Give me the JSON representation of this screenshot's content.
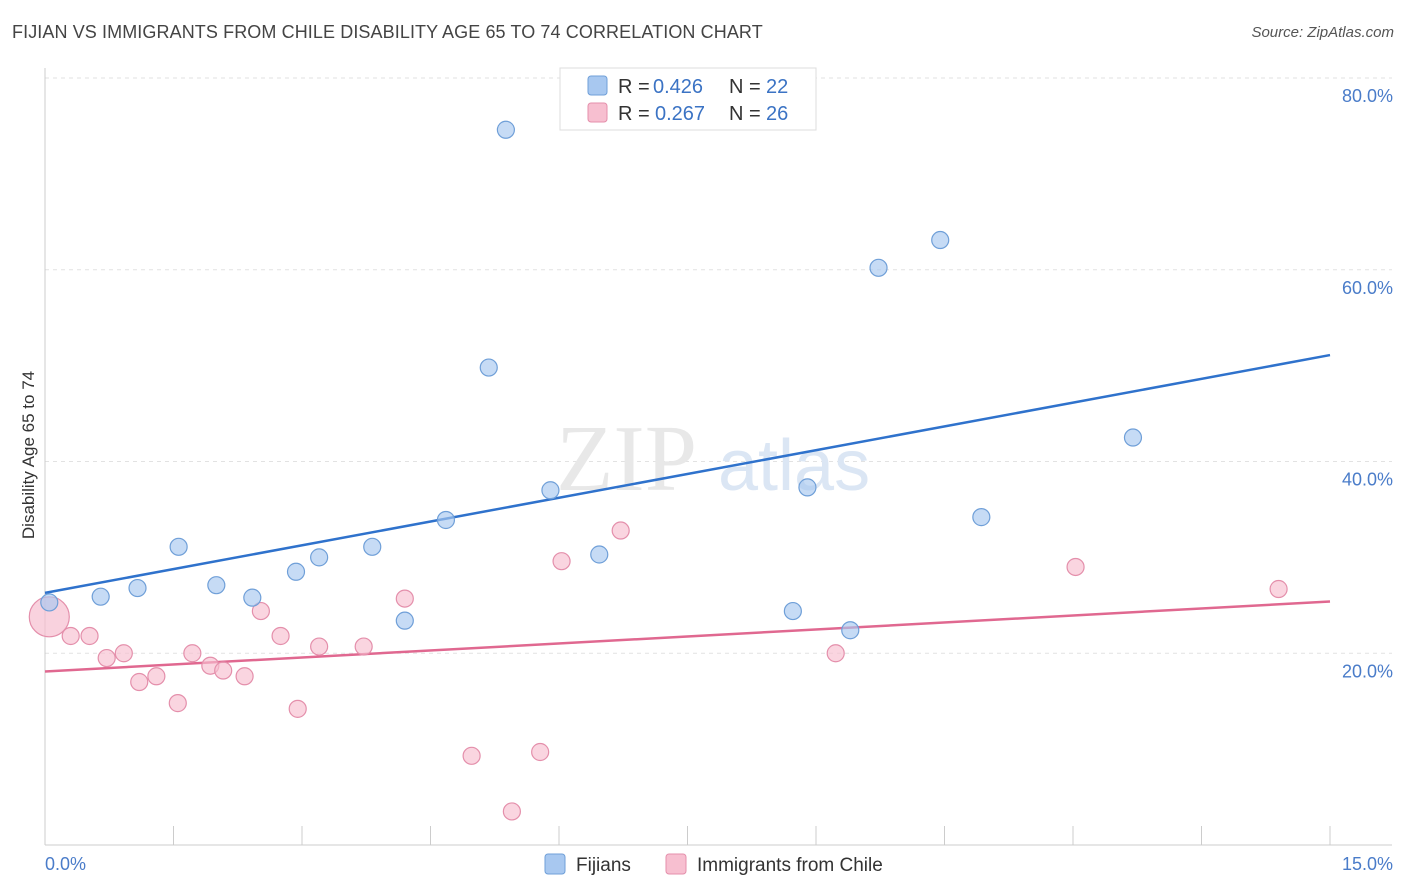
{
  "header": {
    "title": "FIJIAN VS IMMIGRANTS FROM CHILE DISABILITY AGE 65 TO 74 CORRELATION CHART",
    "source": "Source: ZipAtlas.com"
  },
  "watermark": {
    "part1": "ZIP",
    "part2": "atlas"
  },
  "legend_top": {
    "rows": [
      {
        "r_label": "R =",
        "r_value": "0.426",
        "n_label": "N =",
        "n_value": "22"
      },
      {
        "r_label": "R =",
        "r_value": "0.267",
        "n_label": "N =",
        "n_value": "26"
      }
    ]
  },
  "chart_data": {
    "type": "scatter",
    "title": "FIJIAN VS IMMIGRANTS FROM CHILE DISABILITY AGE 65 TO 74 CORRELATION CHART",
    "xlabel": "",
    "ylabel": "Disability Age 65 to 74",
    "xlim": [
      0,
      15
    ],
    "ylim": [
      0,
      80
    ],
    "x_tick_labels": [
      "0.0%",
      "15.0%"
    ],
    "y_ticks": [
      20,
      40,
      60,
      80
    ],
    "y_tick_labels": [
      "20.0%",
      "40.0%",
      "60.0%",
      "80.0%"
    ],
    "grid": true,
    "legend_position": "top-center",
    "series": [
      {
        "name": "Fijians",
        "color": "#a8c8f0",
        "stroke": "#6f9fd8",
        "line_color": "#2f72cc",
        "r": 0.426,
        "n": 22,
        "trend": {
          "x": [
            0,
            15
          ],
          "y": [
            26.3,
            51.1
          ]
        },
        "points": [
          {
            "x": 0.05,
            "y": 25.3
          },
          {
            "x": 0.65,
            "y": 25.9
          },
          {
            "x": 1.08,
            "y": 26.8
          },
          {
            "x": 1.56,
            "y": 31.1
          },
          {
            "x": 2.0,
            "y": 27.1
          },
          {
            "x": 2.42,
            "y": 25.8
          },
          {
            "x": 2.93,
            "y": 28.5
          },
          {
            "x": 3.2,
            "y": 30.0
          },
          {
            "x": 3.82,
            "y": 31.1
          },
          {
            "x": 4.2,
            "y": 23.4
          },
          {
            "x": 4.68,
            "y": 33.9
          },
          {
            "x": 5.18,
            "y": 49.8
          },
          {
            "x": 5.38,
            "y": 74.6
          },
          {
            "x": 5.9,
            "y": 37.0
          },
          {
            "x": 6.47,
            "y": 30.3
          },
          {
            "x": 8.73,
            "y": 24.4
          },
          {
            "x": 8.9,
            "y": 37.3
          },
          {
            "x": 9.4,
            "y": 22.4
          },
          {
            "x": 9.73,
            "y": 60.2
          },
          {
            "x": 10.45,
            "y": 63.1
          },
          {
            "x": 10.93,
            "y": 34.2
          },
          {
            "x": 12.7,
            "y": 42.5
          }
        ]
      },
      {
        "name": "Immigrants from Chile",
        "color": "#f7bfd0",
        "stroke": "#e48fab",
        "line_color": "#e06890",
        "r": 0.267,
        "n": 26,
        "trend": {
          "x": [
            0,
            15
          ],
          "y": [
            18.1,
            25.4
          ]
        },
        "points": [
          {
            "x": 0.05,
            "y": 23.8
          },
          {
            "x": 0.3,
            "y": 21.8
          },
          {
            "x": 0.52,
            "y": 21.8
          },
          {
            "x": 0.72,
            "y": 19.5
          },
          {
            "x": 0.92,
            "y": 20.0
          },
          {
            "x": 1.1,
            "y": 17.0
          },
          {
            "x": 1.3,
            "y": 17.6
          },
          {
            "x": 1.55,
            "y": 14.8
          },
          {
            "x": 1.72,
            "y": 20.0
          },
          {
            "x": 1.93,
            "y": 18.7
          },
          {
            "x": 2.08,
            "y": 18.2
          },
          {
            "x": 2.33,
            "y": 17.6
          },
          {
            "x": 2.52,
            "y": 24.4
          },
          {
            "x": 2.75,
            "y": 21.8
          },
          {
            "x": 2.95,
            "y": 14.2
          },
          {
            "x": 3.2,
            "y": 20.7
          },
          {
            "x": 3.72,
            "y": 20.7
          },
          {
            "x": 4.2,
            "y": 25.7
          },
          {
            "x": 4.98,
            "y": 9.3
          },
          {
            "x": 5.45,
            "y": 3.5
          },
          {
            "x": 5.78,
            "y": 9.7
          },
          {
            "x": 6.03,
            "y": 29.6
          },
          {
            "x": 6.72,
            "y": 32.8
          },
          {
            "x": 9.23,
            "y": 20.0
          },
          {
            "x": 12.03,
            "y": 29.0
          },
          {
            "x": 14.4,
            "y": 26.7
          }
        ]
      }
    ]
  }
}
